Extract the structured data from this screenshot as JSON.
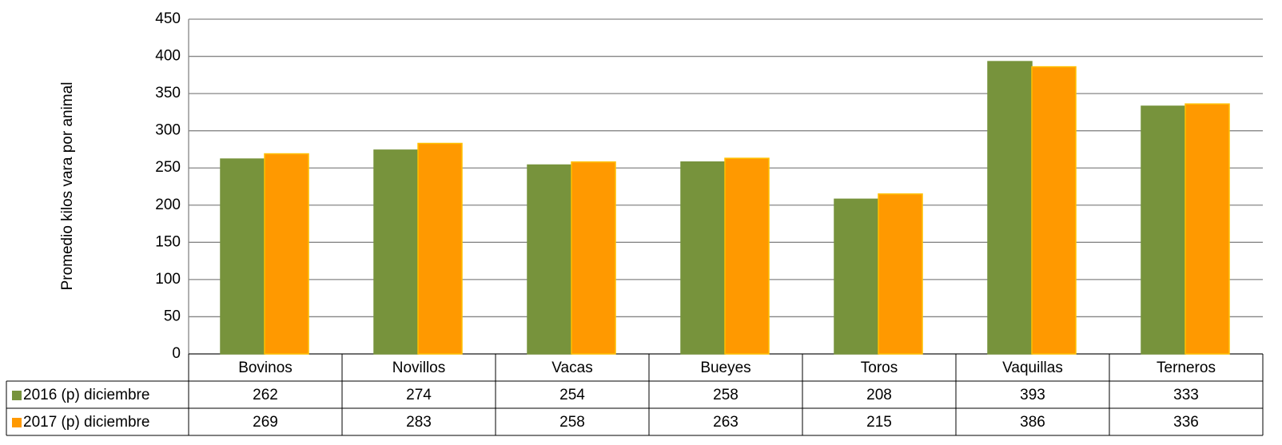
{
  "chart_data": {
    "type": "bar",
    "y_label": "Promedio kilos vara por animal",
    "categories": [
      "Bovinos",
      "Novillos",
      "Vacas",
      "Bueyes",
      "Toros",
      "Vaquillas",
      "Terneros"
    ],
    "series": [
      {
        "name": "2016 (p) diciembre",
        "color": "#77933c",
        "values": [
          262,
          274,
          254,
          258,
          208,
          393,
          333
        ]
      },
      {
        "name": "2017 (p) diciembre",
        "color": "#ff9900",
        "values": [
          269,
          283,
          258,
          263,
          215,
          386,
          336
        ]
      }
    ],
    "ylim": [
      0,
      450
    ],
    "yticks": [
      0,
      50,
      100,
      150,
      200,
      250,
      300,
      350,
      400,
      450
    ],
    "grid": true
  }
}
